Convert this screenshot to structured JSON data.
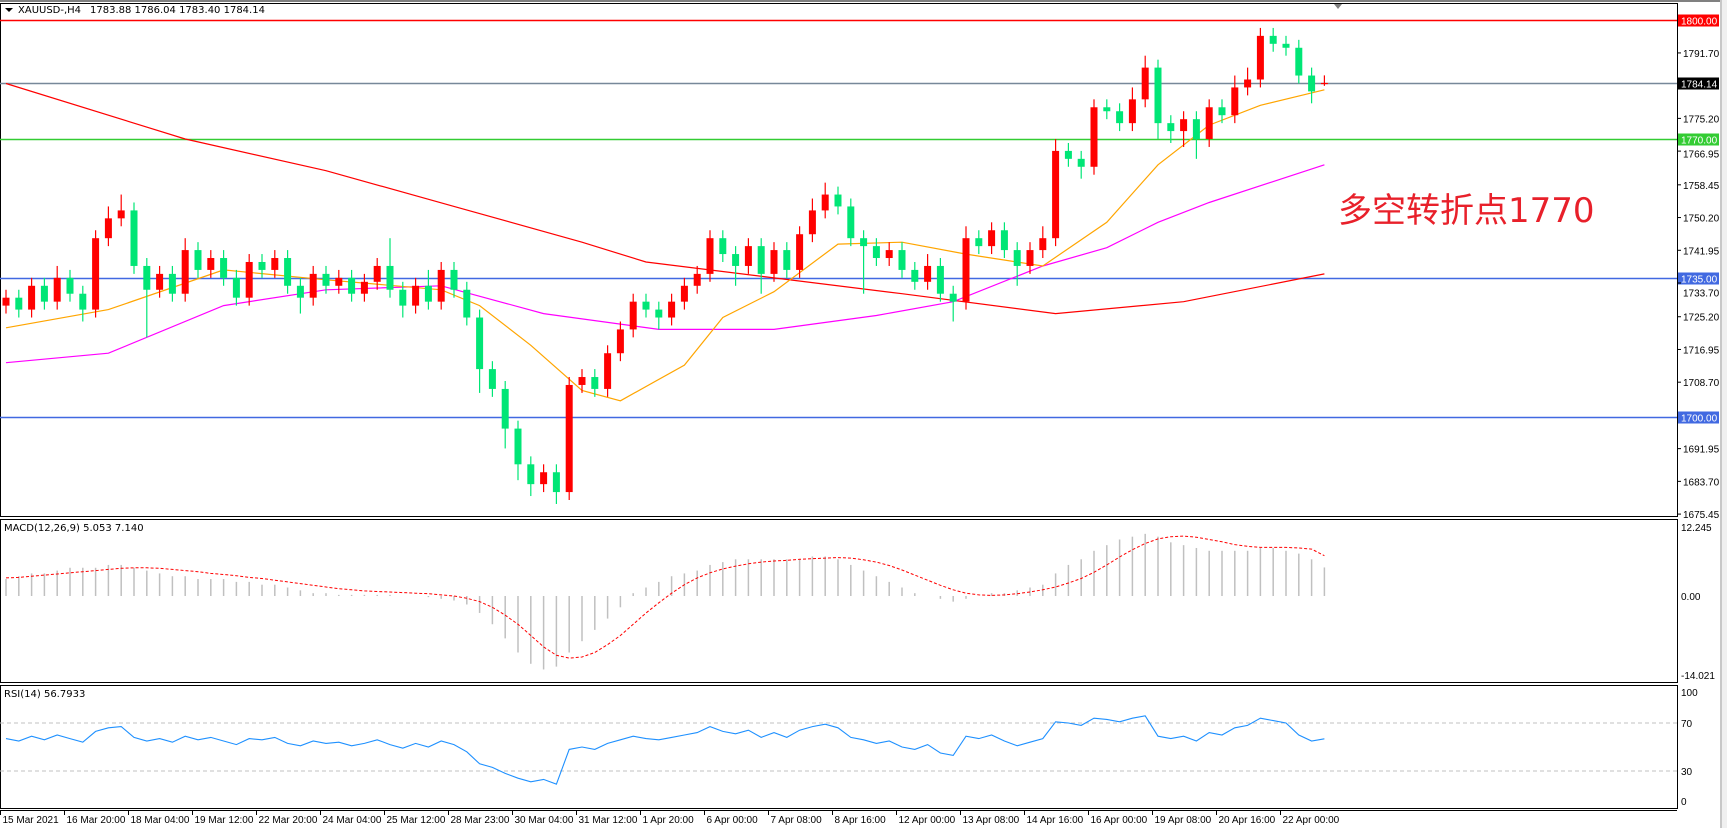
{
  "header": {
    "symbol_label": "XAUUSD-,H4",
    "ohlc_text": "1783.88 1786.04 1783.40 1784.14"
  },
  "annotation": {
    "text": "多空转折点1770",
    "color": "#e8202a"
  },
  "colors": {
    "bull_candle": "#ff0000",
    "bear_candle": "#00e676",
    "ma_slow": "#ff0000",
    "ma_mid": "#ff00ff",
    "ma_fast": "#ffa500",
    "macd_hist": "#c0c0c0",
    "macd_signal": "#ff0000",
    "rsi_line": "#1e90ff",
    "grid_level": "#c0c0c0"
  },
  "chart_data": [
    {
      "type": "candlestick",
      "title": "XAUUSD-,H4",
      "ylim": [
        1675.45,
        1800.0
      ],
      "y_ticks": [
        "1791.70",
        "1775.20",
        "1766.95",
        "1758.45",
        "1750.20",
        "1741.95",
        "1733.70",
        "1725.20",
        "1716.95",
        "1708.70",
        "1691.95",
        "1683.70",
        "1675.45"
      ],
      "x_ticks": [
        {
          "label": "15 Mar 2021",
          "bar": 0
        },
        {
          "label": "16 Mar 20:00",
          "bar": 5
        },
        {
          "label": "18 Mar 04:00",
          "bar": 10
        },
        {
          "label": "19 Mar 12:00",
          "bar": 15
        },
        {
          "label": "22 Mar 20:00",
          "bar": 20
        },
        {
          "label": "24 Mar 04:00",
          "bar": 25
        },
        {
          "label": "25 Mar 12:00",
          "bar": 30
        },
        {
          "label": "28 Mar 23:00",
          "bar": 35
        },
        {
          "label": "30 Mar 04:00",
          "bar": 40
        },
        {
          "label": "31 Mar 12:00",
          "bar": 45
        },
        {
          "label": "1 Apr 20:00",
          "bar": 50
        },
        {
          "label": "6 Apr 00:00",
          "bar": 55
        },
        {
          "label": "7 Apr 08:00",
          "bar": 60
        },
        {
          "label": "8 Apr 16:00",
          "bar": 65
        },
        {
          "label": "12 Apr 00:00",
          "bar": 70
        },
        {
          "label": "13 Apr 08:00",
          "bar": 75
        },
        {
          "label": "14 Apr 16:00",
          "bar": 80
        },
        {
          "label": "16 Apr 00:00",
          "bar": 85
        },
        {
          "label": "19 Apr 08:00",
          "bar": 90
        },
        {
          "label": "20 Apr 16:00",
          "bar": 95
        },
        {
          "label": "22 Apr 00:00",
          "bar": 100
        }
      ],
      "open": [
        1728,
        1730,
        1727,
        1733,
        1729,
        1735,
        1731,
        1727,
        1745,
        1750,
        1752,
        1738,
        1732,
        1736,
        1731,
        1742,
        1737,
        1740,
        1735,
        1730,
        1739,
        1737,
        1740,
        1733,
        1730,
        1736,
        1733,
        1735,
        1731,
        1734,
        1738,
        1732,
        1728,
        1733,
        1729,
        1737,
        1732,
        1725,
        1712,
        1707,
        1697,
        1688,
        1683,
        1686,
        1681,
        1708,
        1710,
        1707,
        1716,
        1722,
        1729,
        1727,
        1725,
        1729,
        1733,
        1736,
        1745,
        1741,
        1738,
        1743,
        1736,
        1742,
        1737,
        1746,
        1752,
        1756,
        1753,
        1745,
        1743,
        1740,
        1742,
        1737,
        1734,
        1738,
        1731,
        1729,
        1745,
        1743,
        1747,
        1742,
        1738,
        1742,
        1745,
        1767,
        1765,
        1763,
        1778,
        1777,
        1774,
        1780,
        1788,
        1774,
        1772,
        1775,
        1770,
        1778,
        1776,
        1783,
        1785,
        1796,
        1794,
        1793,
        1786,
        1783.88
      ],
      "high": [
        1732,
        1732,
        1735,
        1735,
        1738,
        1737,
        1733,
        1747,
        1753,
        1756,
        1754,
        1740,
        1738,
        1738,
        1745,
        1744,
        1742,
        1742,
        1737,
        1741,
        1741,
        1742,
        1742,
        1735,
        1738,
        1738,
        1737,
        1737,
        1736,
        1740,
        1745,
        1734,
        1735,
        1737,
        1739,
        1739,
        1734,
        1727,
        1714,
        1709,
        1699,
        1690,
        1688,
        1688,
        1710,
        1712,
        1712,
        1718,
        1724,
        1731,
        1731,
        1729,
        1731,
        1735,
        1738,
        1747,
        1747,
        1743,
        1745,
        1745,
        1744,
        1744,
        1748,
        1755,
        1759,
        1758,
        1755,
        1747,
        1745,
        1744,
        1744,
        1739,
        1741,
        1740,
        1733,
        1748,
        1747,
        1749,
        1749,
        1744,
        1744,
        1748,
        1770,
        1769,
        1767,
        1780,
        1780,
        1779,
        1783,
        1791,
        1790,
        1776,
        1777,
        1777,
        1780,
        1780,
        1786,
        1788,
        1798,
        1798,
        1796,
        1795,
        1788,
        1786.04
      ],
      "low": [
        1726,
        1725,
        1725,
        1727,
        1727,
        1729,
        1724,
        1725,
        1743,
        1748,
        1736,
        1720,
        1730,
        1729,
        1729,
        1735,
        1735,
        1733,
        1728,
        1728,
        1735,
        1735,
        1731,
        1726,
        1728,
        1731,
        1731,
        1729,
        1729,
        1732,
        1730,
        1725,
        1726,
        1727,
        1727,
        1730,
        1723,
        1706,
        1705,
        1692,
        1684,
        1680,
        1681,
        1678,
        1679,
        1706,
        1705,
        1705,
        1714,
        1720,
        1725,
        1722,
        1723,
        1727,
        1731,
        1734,
        1739,
        1733,
        1736,
        1731,
        1734,
        1735,
        1735,
        1744,
        1750,
        1751,
        1743,
        1731,
        1738,
        1738,
        1735,
        1732,
        1732,
        1729,
        1724,
        1727,
        1741,
        1741,
        1740,
        1733,
        1736,
        1740,
        1743,
        1763,
        1760,
        1761,
        1775,
        1772,
        1772,
        1778,
        1770,
        1769,
        1768,
        1765,
        1768,
        1774,
        1774,
        1781,
        1783,
        1792,
        1791,
        1784,
        1779,
        1783.4
      ],
      "close": [
        1730,
        1727,
        1733,
        1729,
        1735,
        1731,
        1727,
        1745,
        1750,
        1752,
        1738,
        1732,
        1736,
        1731,
        1742,
        1737,
        1740,
        1735,
        1730,
        1739,
        1737,
        1740,
        1733,
        1730,
        1736,
        1733,
        1735,
        1731,
        1734,
        1738,
        1732,
        1728,
        1733,
        1729,
        1737,
        1732,
        1725,
        1712,
        1707,
        1697,
        1688,
        1683,
        1686,
        1681,
        1708,
        1710,
        1707,
        1716,
        1722,
        1729,
        1727,
        1725,
        1729,
        1733,
        1736,
        1745,
        1741,
        1738,
        1743,
        1736,
        1742,
        1737,
        1746,
        1752,
        1756,
        1753,
        1745,
        1743,
        1740,
        1742,
        1737,
        1734,
        1738,
        1731,
        1729,
        1745,
        1743,
        1747,
        1742,
        1738,
        1742,
        1745,
        1767,
        1765,
        1763,
        1778,
        1777,
        1774,
        1780,
        1788,
        1774,
        1772,
        1775,
        1770,
        1778,
        1776,
        1783,
        1785,
        1796,
        1794,
        1793,
        1786,
        1782,
        1784.14
      ],
      "moving_averages": [
        {
          "color_key": "ma_slow",
          "points": [
            [
              0,
              1784
            ],
            [
              14,
              1770
            ],
            [
              25,
              1762
            ],
            [
              35,
              1753
            ],
            [
              45,
              1744
            ],
            [
              50,
              1739
            ],
            [
              60,
              1735
            ],
            [
              70,
              1731
            ],
            [
              82,
              1726
            ],
            [
              92,
              1729
            ],
            [
              103,
              1736
            ]
          ]
        },
        {
          "color_key": "ma_mid",
          "points": [
            [
              0,
              1713.6
            ],
            [
              8,
              1716
            ],
            [
              17,
              1728
            ],
            [
              25,
              1732
            ],
            [
              34,
              1733
            ],
            [
              42,
              1726
            ],
            [
              51,
              1722
            ],
            [
              60,
              1722
            ],
            [
              68,
              1725.5
            ],
            [
              74,
              1729
            ],
            [
              81,
              1738
            ],
            [
              86,
              1742.6
            ],
            [
              90,
              1749
            ],
            [
              94,
              1754
            ],
            [
              103,
              1763.5
            ]
          ]
        },
        {
          "color_key": "ma_fast",
          "points": [
            [
              0,
              1722.4
            ],
            [
              8,
              1727
            ],
            [
              17,
              1737
            ],
            [
              25,
              1734.5
            ],
            [
              34,
              1732
            ],
            [
              37,
              1728
            ],
            [
              41,
              1718
            ],
            [
              45,
              1706.6
            ],
            [
              48,
              1704
            ],
            [
              53,
              1713
            ],
            [
              56,
              1725
            ],
            [
              60,
              1731.5
            ],
            [
              65,
              1743.5
            ],
            [
              70,
              1744
            ],
            [
              75,
              1741
            ],
            [
              81,
              1738
            ],
            [
              86,
              1749
            ],
            [
              90,
              1763.5
            ],
            [
              94,
              1773.5
            ],
            [
              98,
              1778.5
            ],
            [
              103,
              1782.4
            ]
          ]
        }
      ],
      "horizontal_levels": [
        {
          "price": "1800.00",
          "color": "#ff0000"
        },
        {
          "price": "1784.14",
          "color": "#778899",
          "label_bg": "#000000"
        },
        {
          "price": "1770.00",
          "color": "#33cc33"
        },
        {
          "price": "1735.00",
          "color": "#4169e1"
        },
        {
          "price": "1700.00",
          "color": "#4169e1"
        }
      ]
    },
    {
      "type": "bar+line",
      "title": "MACD(12,26,9) 5.053 7.140",
      "ylim": [
        -14.021,
        12.245
      ],
      "y_ticks": [
        "12.245",
        "0.00",
        "-14.021"
      ],
      "histogram": [
        3,
        3.5,
        4,
        4,
        4.5,
        5,
        5,
        5,
        5.5,
        5.5,
        5,
        4.5,
        4,
        3.5,
        3.5,
        3,
        3,
        3,
        2.5,
        2.5,
        2,
        2,
        1.5,
        1,
        0.5,
        0.5,
        0.2,
        0.2,
        0.2,
        0.2,
        0.2,
        0,
        0,
        -0.2,
        -0.5,
        -0.8,
        -1.5,
        -3,
        -5,
        -7.5,
        -10,
        -12,
        -13,
        -12.5,
        -10,
        -8,
        -6,
        -4,
        -2,
        0.5,
        1.5,
        2.5,
        3.5,
        4,
        4.5,
        5.5,
        6,
        6.5,
        6.5,
        6.5,
        6.5,
        6.5,
        6.5,
        7,
        7,
        6.5,
        5.5,
        4.5,
        3.5,
        2.5,
        1.5,
        0.5,
        0,
        -0.5,
        -1,
        -0.5,
        0,
        0.5,
        0.5,
        1,
        1.5,
        2,
        4,
        5.5,
        6.5,
        8,
        9,
        10,
        10.5,
        11,
        10.5,
        9.5,
        9,
        8.5,
        8,
        8,
        8,
        8,
        8.5,
        8.5,
        8,
        7.5,
        6.5,
        5.053
      ],
      "signal": [
        3.2,
        3.3,
        3.5,
        3.7,
        3.9,
        4.1,
        4.3,
        4.5,
        4.7,
        4.9,
        5,
        5,
        4.9,
        4.7,
        4.5,
        4.3,
        4,
        3.8,
        3.6,
        3.3,
        3.1,
        2.8,
        2.5,
        2.2,
        1.9,
        1.6,
        1.3,
        1.1,
        0.9,
        0.8,
        0.7,
        0.6,
        0.5,
        0.4,
        0.2,
        0,
        -0.4,
        -1,
        -2,
        -3.4,
        -5,
        -7,
        -9,
        -10.5,
        -11,
        -10.8,
        -10,
        -8.6,
        -7,
        -5,
        -3,
        -1.2,
        0.5,
        2,
        3.2,
        4.1,
        4.8,
        5.3,
        5.7,
        6,
        6.2,
        6.3,
        6.5,
        6.6,
        6.7,
        6.8,
        6.7,
        6.4,
        6,
        5.4,
        4.6,
        3.7,
        2.8,
        1.9,
        1.1,
        0.5,
        0.2,
        0.1,
        0.2,
        0.4,
        0.7,
        1.1,
        1.6,
        2.3,
        3.1,
        4.2,
        5.5,
        6.9,
        8.2,
        9.3,
        10.1,
        10.5,
        10.6,
        10.4,
        10,
        9.6,
        9.1,
        8.8,
        8.6,
        8.6,
        8.6,
        8.5,
        8.3,
        7.14
      ]
    },
    {
      "type": "line",
      "title": "RSI(14) 56.7933",
      "ylim": [
        0,
        100
      ],
      "y_ticks": [
        "100",
        "70",
        "30",
        "0"
      ],
      "levels": [
        70,
        30
      ],
      "values": [
        57,
        55,
        59,
        56,
        60,
        57,
        54,
        63,
        66,
        67,
        58,
        55,
        57,
        54,
        59,
        56,
        58,
        55,
        52,
        57,
        56,
        58,
        53,
        51,
        55,
        53,
        54,
        51,
        53,
        56,
        52,
        49,
        53,
        50,
        55,
        52,
        46,
        36,
        33,
        28,
        24,
        21,
        23,
        19,
        48,
        50,
        48,
        53,
        56,
        59,
        57,
        56,
        58,
        60,
        62,
        67,
        63,
        61,
        64,
        58,
        62,
        58,
        64,
        67,
        69,
        66,
        58,
        56,
        53,
        55,
        50,
        48,
        52,
        45,
        43,
        59,
        57,
        60,
        55,
        51,
        54,
        57,
        71,
        70,
        68,
        74,
        73,
        71,
        74,
        76,
        59,
        57,
        59,
        55,
        62,
        60,
        66,
        68,
        74,
        72,
        70,
        60,
        55,
        56.7933
      ]
    }
  ]
}
